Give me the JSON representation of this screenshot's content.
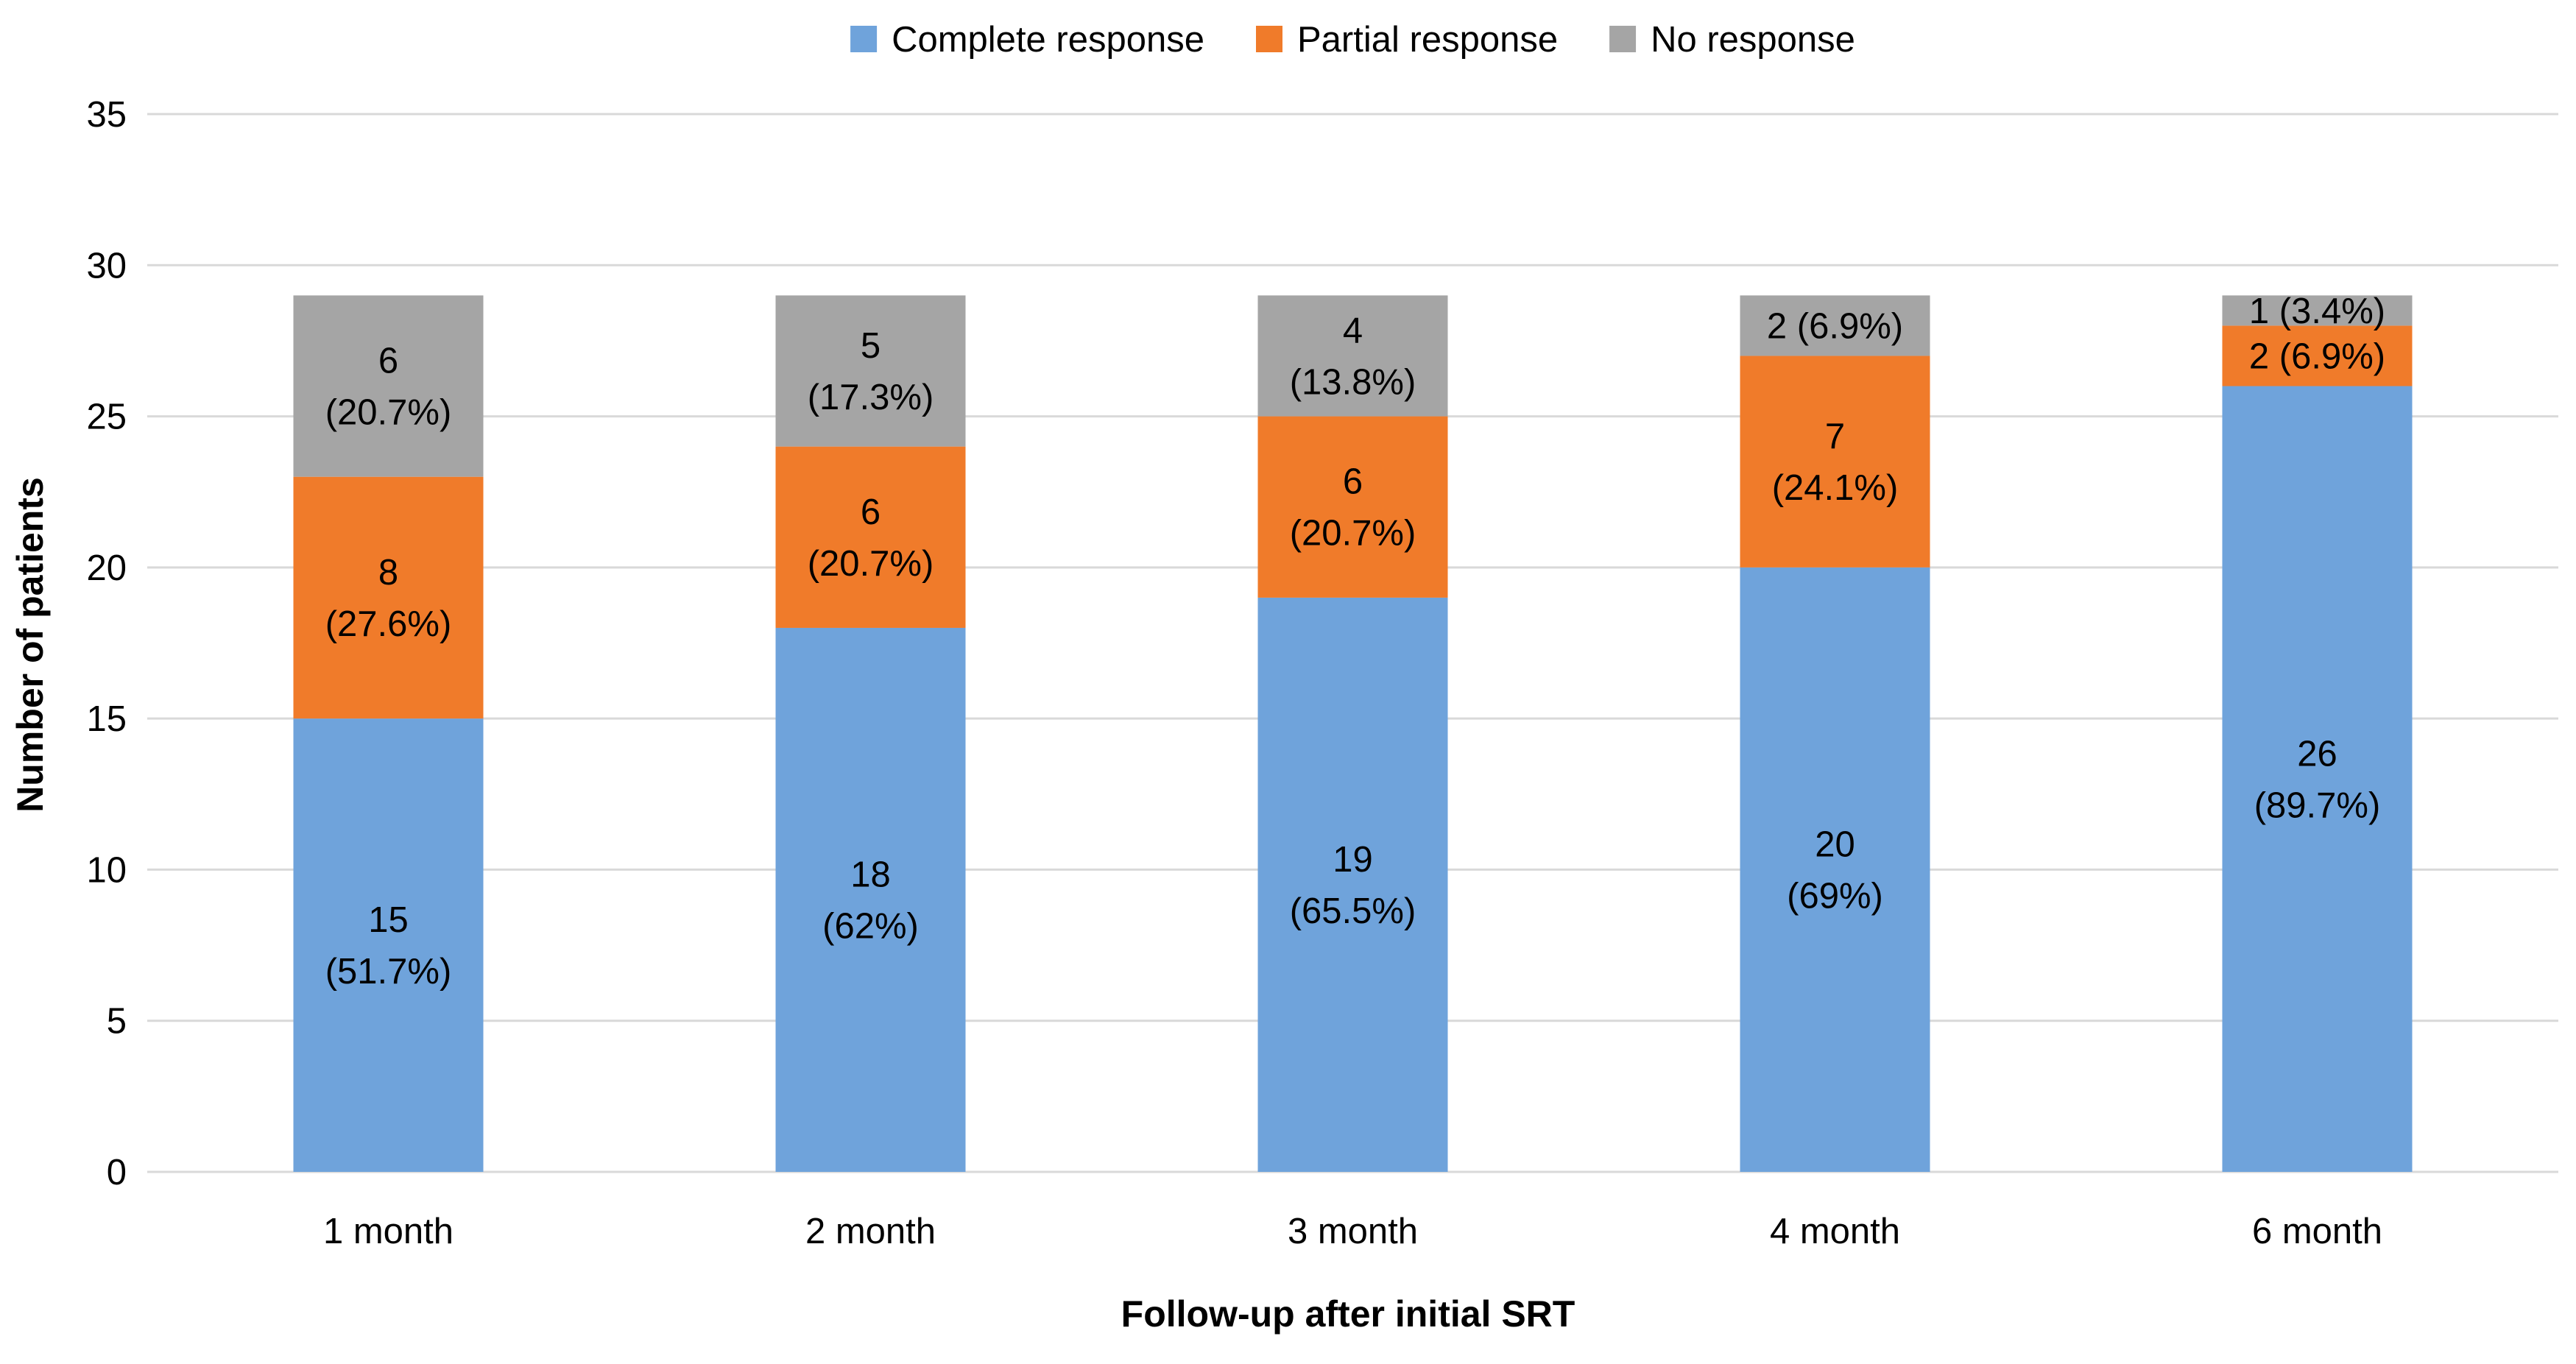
{
  "chart_data": {
    "type": "bar",
    "stacked": true,
    "title": "",
    "xlabel": "Follow-up after initial SRT",
    "ylabel": "Number of patients",
    "ylim": [
      0,
      35
    ],
    "yticks": [
      0,
      5,
      10,
      15,
      20,
      25,
      30,
      35
    ],
    "grid": true,
    "legend_position": "top-center",
    "categories": [
      "1 month",
      "2 month",
      "3 month",
      "4 month",
      "6 month"
    ],
    "series": [
      {
        "name": "Complete response",
        "color": "#6FA3DB",
        "values": [
          15,
          18,
          19,
          20,
          26
        ],
        "labels": [
          [
            "15",
            "(51.7%)"
          ],
          [
            "18",
            "(62%)"
          ],
          [
            "19",
            "(65.5%)"
          ],
          [
            "20",
            "(69%)"
          ],
          [
            "26",
            "(89.7%)"
          ]
        ]
      },
      {
        "name": "Partial response",
        "color": "#F07B2A",
        "values": [
          8,
          6,
          6,
          7,
          2
        ],
        "labels": [
          [
            "8",
            "(27.6%)"
          ],
          [
            "6",
            "(20.7%)"
          ],
          [
            "6",
            "(20.7%)"
          ],
          [
            "7",
            "(24.1%)"
          ],
          [
            "2 (6.9%)"
          ]
        ]
      },
      {
        "name": "No response",
        "color": "#A5A5A5",
        "values": [
          6,
          5,
          4,
          2,
          1
        ],
        "labels": [
          [
            "6",
            "(20.7%)"
          ],
          [
            "5",
            "(17.3%)"
          ],
          [
            "4",
            "(13.8%)"
          ],
          [
            "2 (6.9%)"
          ],
          [
            "1 (3.4%)"
          ]
        ]
      }
    ]
  }
}
